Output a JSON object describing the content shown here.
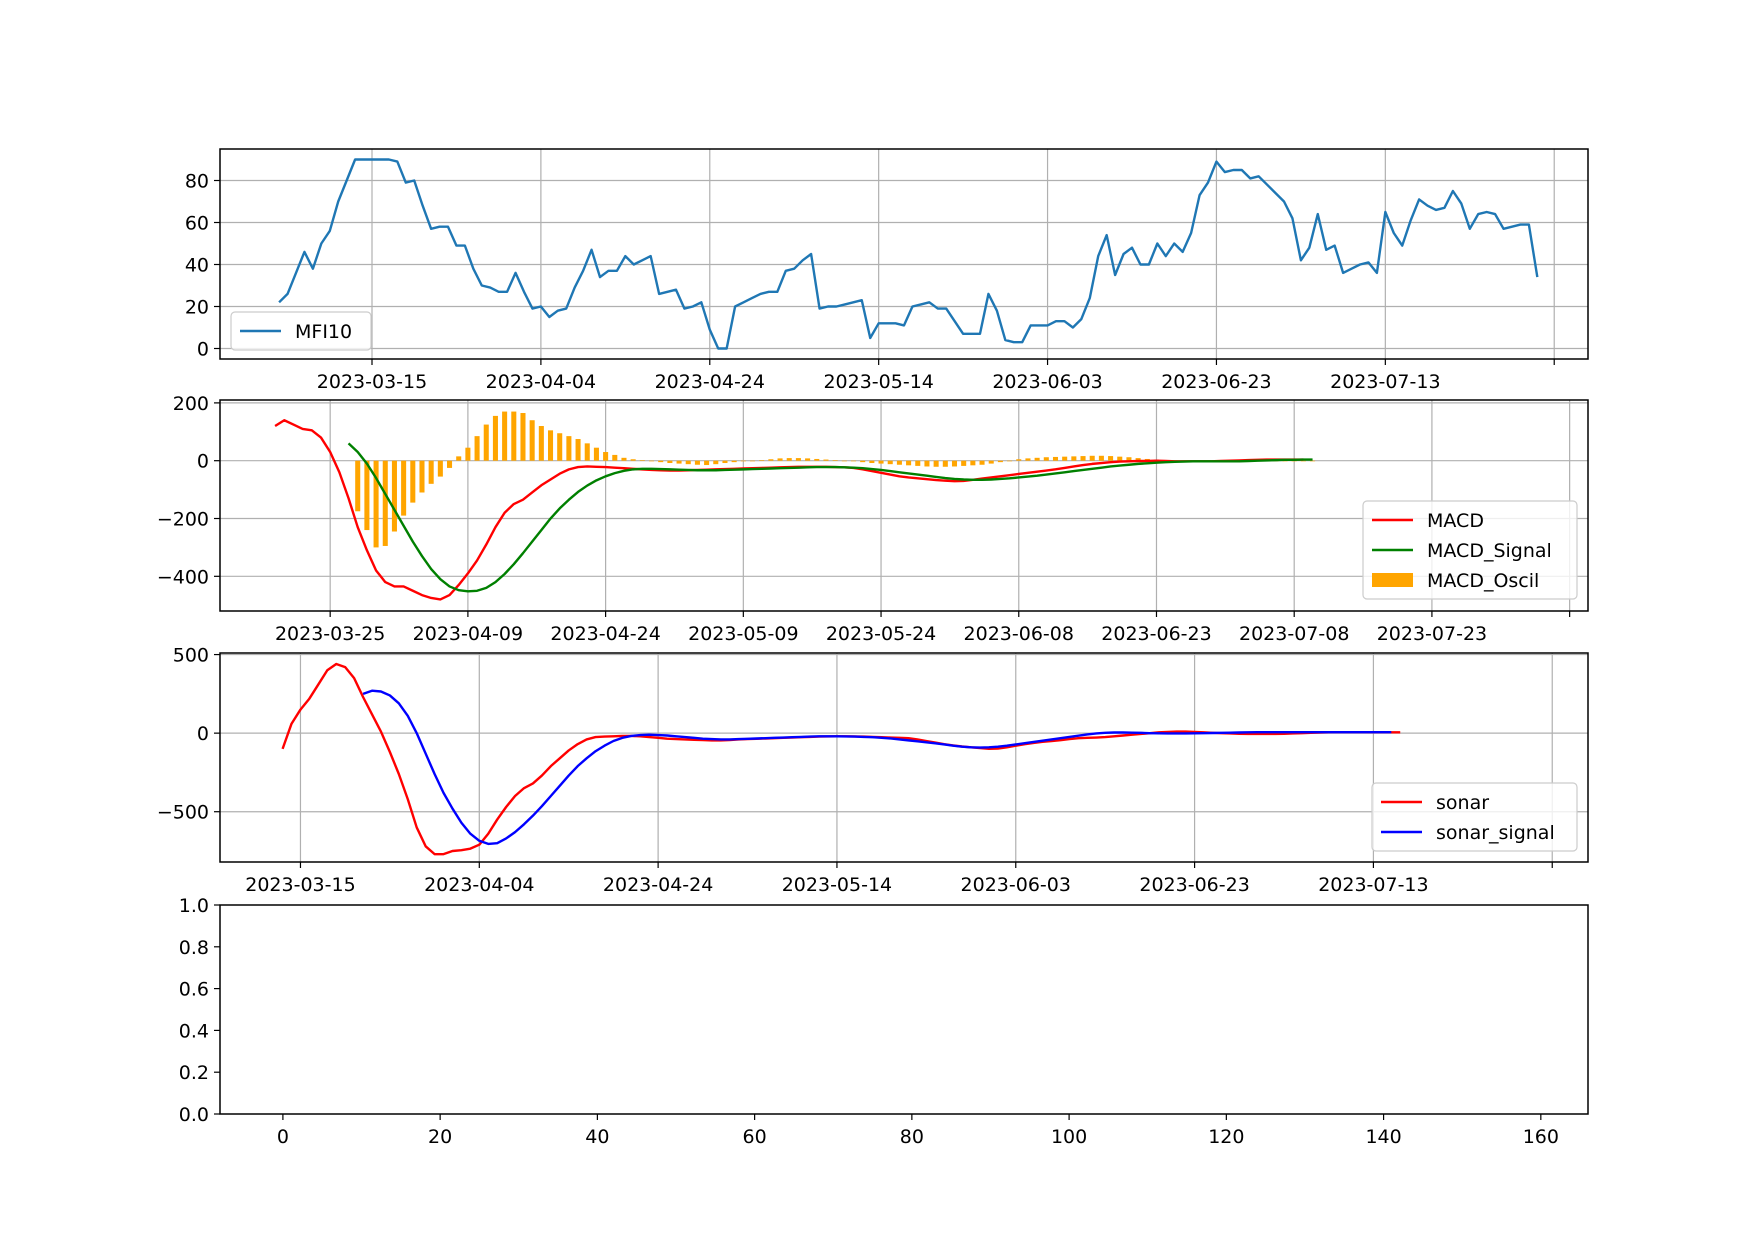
{
  "figure": {
    "panels": [
      "mfi",
      "macd",
      "sonar",
      "empty"
    ]
  },
  "chart_data": [
    {
      "id": "mfi",
      "type": "line",
      "x_type": "date",
      "x_start": "2023-03-04",
      "xlim": [
        "2023-02-25",
        "2023-08-06"
      ],
      "ylim": [
        -5,
        95
      ],
      "grid": true,
      "legend_position": "lower-left",
      "x_ticks": [
        "2023-03-15",
        "2023-04-04",
        "2023-04-24",
        "2023-05-14",
        "2023-06-03",
        "2023-06-23",
        "2023-07-13",
        "2023-08-02"
      ],
      "x_tick_labels": [
        "2023-03-15",
        "2023-04-04",
        "2023-04-24",
        "2023-05-14",
        "2023-06-03",
        "2023-06-23",
        "2023-07-13",
        ""
      ],
      "y_ticks": [
        0,
        20,
        40,
        60,
        80
      ],
      "series": [
        {
          "name": "MFI10",
          "color": "#1f77b4",
          "values": [
            22,
            26,
            36,
            46,
            38,
            50,
            56,
            70,
            80,
            90,
            90,
            90,
            90,
            90,
            89,
            79,
            80,
            68,
            57,
            58,
            58,
            49,
            49,
            38,
            30,
            29,
            27,
            27,
            36,
            27,
            19,
            20,
            15,
            18,
            19,
            29,
            37,
            47,
            34,
            37,
            37,
            44,
            40,
            42,
            44,
            26,
            27,
            28,
            19,
            20,
            22,
            9,
            0,
            0,
            20,
            22,
            24,
            26,
            27,
            27,
            37,
            38,
            42,
            45,
            19,
            20,
            20,
            21,
            22,
            23,
            5,
            12,
            12,
            12,
            11,
            20,
            21,
            22,
            19,
            19,
            13,
            7,
            7,
            7,
            26,
            18,
            4,
            3,
            3,
            11,
            11,
            11,
            13,
            13,
            10,
            14,
            24,
            44,
            54,
            35,
            45,
            48,
            40,
            40,
            50,
            44,
            50,
            46,
            55,
            73,
            79,
            89,
            84,
            85,
            85,
            81,
            82,
            78,
            74,
            70,
            62,
            42,
            48,
            64,
            47,
            49,
            36,
            38,
            40,
            41,
            36,
            65,
            55,
            49,
            61,
            71,
            68,
            66,
            67,
            75,
            69,
            57,
            64,
            65,
            64,
            57,
            58,
            59,
            59,
            34
          ]
        }
      ]
    },
    {
      "id": "macd",
      "type": "line",
      "x_type": "date",
      "x_start": "2023-03-19",
      "xlim": [
        "2023-03-13",
        "2023-08-09"
      ],
      "ylim": [
        -520,
        210
      ],
      "grid": true,
      "legend_position": "center-right",
      "x_ticks": [
        "2023-03-25",
        "2023-04-09",
        "2023-04-24",
        "2023-05-09",
        "2023-05-24",
        "2023-06-08",
        "2023-06-23",
        "2023-07-08",
        "2023-07-23",
        "2023-08-07"
      ],
      "x_tick_labels": [
        "2023-03-25",
        "2023-04-09",
        "2023-04-24",
        "2023-05-09",
        "2023-05-24",
        "2023-06-08",
        "2023-06-23",
        "2023-07-08",
        "2023-07-23",
        ""
      ],
      "y_ticks": [
        200,
        0,
        -200,
        -400
      ],
      "y_tick_labels": [
        "200",
        "0",
        "−200",
        "−400"
      ],
      "series": [
        {
          "name": "MACD",
          "color": "#ff0000",
          "kind": "line",
          "x_start": "2023-03-19",
          "values": [
            120,
            140,
            125,
            110,
            105,
            80,
            30,
            -40,
            -130,
            -230,
            -310,
            -380,
            -420,
            -435,
            -435,
            -450,
            -465,
            -475,
            -480,
            -465,
            -430,
            -390,
            -345,
            -290,
            -230,
            -180,
            -150,
            -135,
            -110,
            -85,
            -65,
            -45,
            -30,
            -22,
            -20,
            -21,
            -22,
            -24,
            -26,
            -28,
            -30,
            -32,
            -33,
            -34,
            -34,
            -33,
            -32,
            -31,
            -30,
            -29,
            -28,
            -27,
            -26,
            -25,
            -24,
            -23,
            -22,
            -21,
            -21,
            -21,
            -21,
            -22,
            -23,
            -25,
            -30,
            -36,
            -42,
            -48,
            -54,
            -58,
            -61,
            -64,
            -67,
            -69,
            -71,
            -70,
            -66,
            -62,
            -58,
            -54,
            -50,
            -46,
            -42,
            -38,
            -34,
            -30,
            -25,
            -20,
            -15,
            -11,
            -8,
            -5,
            -3,
            -2,
            -1,
            -1,
            0,
            -1,
            -2,
            -2,
            -2,
            -2,
            -2,
            -1,
            0,
            1,
            2,
            3,
            4,
            4,
            4,
            4,
            4
          ]
        },
        {
          "name": "MACD_Signal",
          "color": "#008000",
          "kind": "line",
          "x_start": "2023-03-27",
          "values": [
            60,
            30,
            -10,
            -60,
            -115,
            -170,
            -225,
            -280,
            -330,
            -375,
            -410,
            -435,
            -448,
            -452,
            -450,
            -440,
            -420,
            -392,
            -358,
            -320,
            -280,
            -240,
            -200,
            -165,
            -135,
            -108,
            -86,
            -68,
            -54,
            -43,
            -35,
            -30,
            -28,
            -28,
            -29,
            -30,
            -31,
            -32,
            -33,
            -33,
            -33,
            -32,
            -31,
            -30,
            -29,
            -28,
            -27,
            -26,
            -25,
            -24,
            -23,
            -22,
            -22,
            -22,
            -23,
            -24,
            -26,
            -29,
            -32,
            -36,
            -40,
            -44,
            -48,
            -52,
            -56,
            -60,
            -63,
            -65,
            -66,
            -66,
            -65,
            -63,
            -61,
            -58,
            -55,
            -52,
            -48,
            -44,
            -40,
            -36,
            -32,
            -28,
            -24,
            -20,
            -17,
            -14,
            -11,
            -9,
            -7,
            -5,
            -4,
            -3,
            -2,
            -2,
            -2,
            -2,
            -2,
            -2,
            -1,
            0,
            1,
            2,
            3,
            3,
            4,
            4
          ]
        },
        {
          "name": "MACD_Oscil",
          "color": "#ffa500",
          "kind": "bar",
          "x_start": "2023-03-28",
          "values": [
            -175,
            -240,
            -300,
            -295,
            -245,
            -190,
            -145,
            -110,
            -80,
            -55,
            -25,
            15,
            45,
            85,
            125,
            155,
            170,
            170,
            165,
            140,
            120,
            105,
            95,
            85,
            75,
            60,
            45,
            30,
            20,
            10,
            5,
            2,
            -2,
            -5,
            -8,
            -10,
            -12,
            -14,
            -15,
            -12,
            -8,
            -5,
            -2,
            0,
            2,
            5,
            8,
            9,
            9,
            8,
            6,
            4,
            2,
            0,
            -2,
            -5,
            -8,
            -10,
            -12,
            -14,
            -16,
            -18,
            -20,
            -21,
            -21,
            -20,
            -18,
            -16,
            -14,
            -10,
            -5,
            0,
            5,
            8,
            10,
            12,
            13,
            14,
            15,
            16,
            17,
            17,
            16,
            14,
            12,
            9,
            6,
            4,
            2,
            1,
            0,
            0,
            0,
            0,
            0,
            0,
            0,
            0,
            0,
            0,
            0,
            0,
            0,
            0,
            0
          ]
        }
      ]
    },
    {
      "id": "sonar",
      "type": "line",
      "x_type": "date",
      "x_start": "2023-03-13",
      "xlim": [
        "2023-03-06",
        "2023-08-06"
      ],
      "ylim": [
        -820,
        510
      ],
      "grid": true,
      "legend_position": "lower-right",
      "x_ticks": [
        "2023-03-15",
        "2023-04-04",
        "2023-04-24",
        "2023-05-14",
        "2023-06-03",
        "2023-06-23",
        "2023-07-13",
        "2023-08-02"
      ],
      "x_tick_labels": [
        "2023-03-15",
        "2023-04-04",
        "2023-04-24",
        "2023-05-14",
        "2023-06-03",
        "2023-06-23",
        "2023-07-13",
        ""
      ],
      "y_ticks": [
        500,
        0,
        -500
      ],
      "y_tick_labels": [
        "500",
        "0",
        "−500"
      ],
      "series": [
        {
          "name": "sonar",
          "color": "#ff0000",
          "x_start": "2023-03-13",
          "values": [
            -100,
            60,
            150,
            220,
            310,
            400,
            440,
            420,
            350,
            230,
            120,
            10,
            -120,
            -260,
            -420,
            -600,
            -720,
            -770,
            -770,
            -750,
            -745,
            -735,
            -710,
            -640,
            -550,
            -470,
            -400,
            -350,
            -320,
            -270,
            -210,
            -160,
            -110,
            -70,
            -40,
            -25,
            -22,
            -20,
            -18,
            -18,
            -20,
            -25,
            -30,
            -35,
            -38,
            -40,
            -42,
            -44,
            -46,
            -46,
            -44,
            -40,
            -38,
            -36,
            -34,
            -32,
            -30,
            -28,
            -26,
            -24,
            -22,
            -21,
            -20,
            -20,
            -21,
            -22,
            -24,
            -26,
            -28,
            -30,
            -32,
            -40,
            -50,
            -60,
            -70,
            -78,
            -85,
            -90,
            -95,
            -100,
            -98,
            -90,
            -80,
            -70,
            -62,
            -55,
            -50,
            -45,
            -38,
            -32,
            -30,
            -28,
            -25,
            -20,
            -15,
            -10,
            -5,
            0,
            5,
            8,
            10,
            10,
            8,
            5,
            2,
            0,
            -2,
            -4,
            -5,
            -5,
            -5,
            -5,
            -4,
            -2,
            0,
            2,
            4,
            5,
            6,
            6,
            6,
            6,
            5,
            5,
            5,
            5
          ]
        },
        {
          "name": "sonar_signal",
          "color": "#0000ff",
          "x_start": "2023-03-22",
          "values": [
            250,
            270,
            265,
            240,
            190,
            110,
            0,
            -130,
            -260,
            -380,
            -480,
            -570,
            -640,
            -685,
            -705,
            -700,
            -670,
            -630,
            -580,
            -525,
            -465,
            -400,
            -335,
            -270,
            -210,
            -160,
            -115,
            -80,
            -50,
            -30,
            -18,
            -12,
            -10,
            -12,
            -15,
            -20,
            -25,
            -30,
            -35,
            -38,
            -40,
            -40,
            -38,
            -36,
            -34,
            -32,
            -30,
            -28,
            -26,
            -24,
            -22,
            -20,
            -20,
            -20,
            -21,
            -22,
            -24,
            -26,
            -30,
            -34,
            -40,
            -46,
            -52,
            -58,
            -65,
            -72,
            -80,
            -86,
            -90,
            -92,
            -90,
            -86,
            -80,
            -72,
            -64,
            -56,
            -48,
            -40,
            -32,
            -24,
            -16,
            -8,
            -2,
            2,
            4,
            4,
            3,
            2,
            0,
            -1,
            -2,
            -2,
            -2,
            -1,
            0,
            1,
            2,
            3,
            4,
            5,
            6,
            6,
            6,
            6,
            6,
            6,
            6,
            6,
            6,
            6,
            6,
            6,
            6,
            6,
            6,
            6
          ]
        }
      ]
    },
    {
      "id": "empty",
      "type": "line",
      "xlim": [
        -8,
        166
      ],
      "ylim": [
        0,
        1
      ],
      "grid": false,
      "x_ticks": [
        0,
        20,
        40,
        60,
        80,
        100,
        120,
        140,
        160
      ],
      "y_ticks": [
        0.0,
        0.2,
        0.4,
        0.6,
        0.8,
        1.0
      ],
      "y_tick_labels": [
        "0.0",
        "0.2",
        "0.4",
        "0.6",
        "0.8",
        "1.0"
      ],
      "series": []
    }
  ]
}
